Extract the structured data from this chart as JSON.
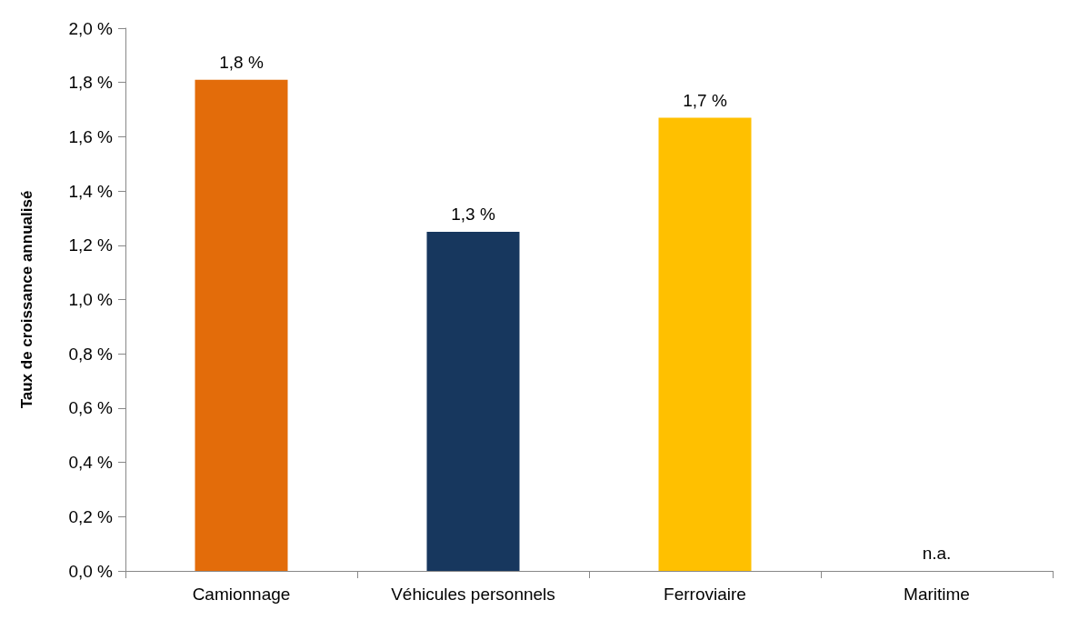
{
  "chart_data": {
    "type": "bar",
    "ylabel": "Taux de croissance annualisé",
    "categories": [
      "Camionnage",
      "Véhicules personnels",
      "Ferroviaire",
      "Maritime"
    ],
    "values": [
      1.81,
      1.25,
      1.67,
      null
    ],
    "colors": [
      "#e36c0a",
      "#17375e",
      "#ffc000",
      null
    ],
    "value_labels": [
      "1,8 %",
      "1,3 %",
      "1,7 %",
      "n.a."
    ],
    "ylim": [
      0,
      2
    ],
    "yticks": [
      {
        "value": 0,
        "label": "0,0 %"
      },
      {
        "value": 0.2,
        "label": "0,2 %"
      },
      {
        "value": 0.4,
        "label": "0,4 %"
      },
      {
        "value": 0.6,
        "label": "0,6 %"
      },
      {
        "value": 0.8,
        "label": "0,8 %"
      },
      {
        "value": 1,
        "label": "1,0 %"
      },
      {
        "value": 1.2,
        "label": "1,2 %"
      },
      {
        "value": 1.4,
        "label": "1,4 %"
      },
      {
        "value": 1.6,
        "label": "1,6 %"
      },
      {
        "value": 1.8,
        "label": "1,8 %"
      },
      {
        "value": 2,
        "label": "2,0 %"
      }
    ],
    "grid": false
  }
}
